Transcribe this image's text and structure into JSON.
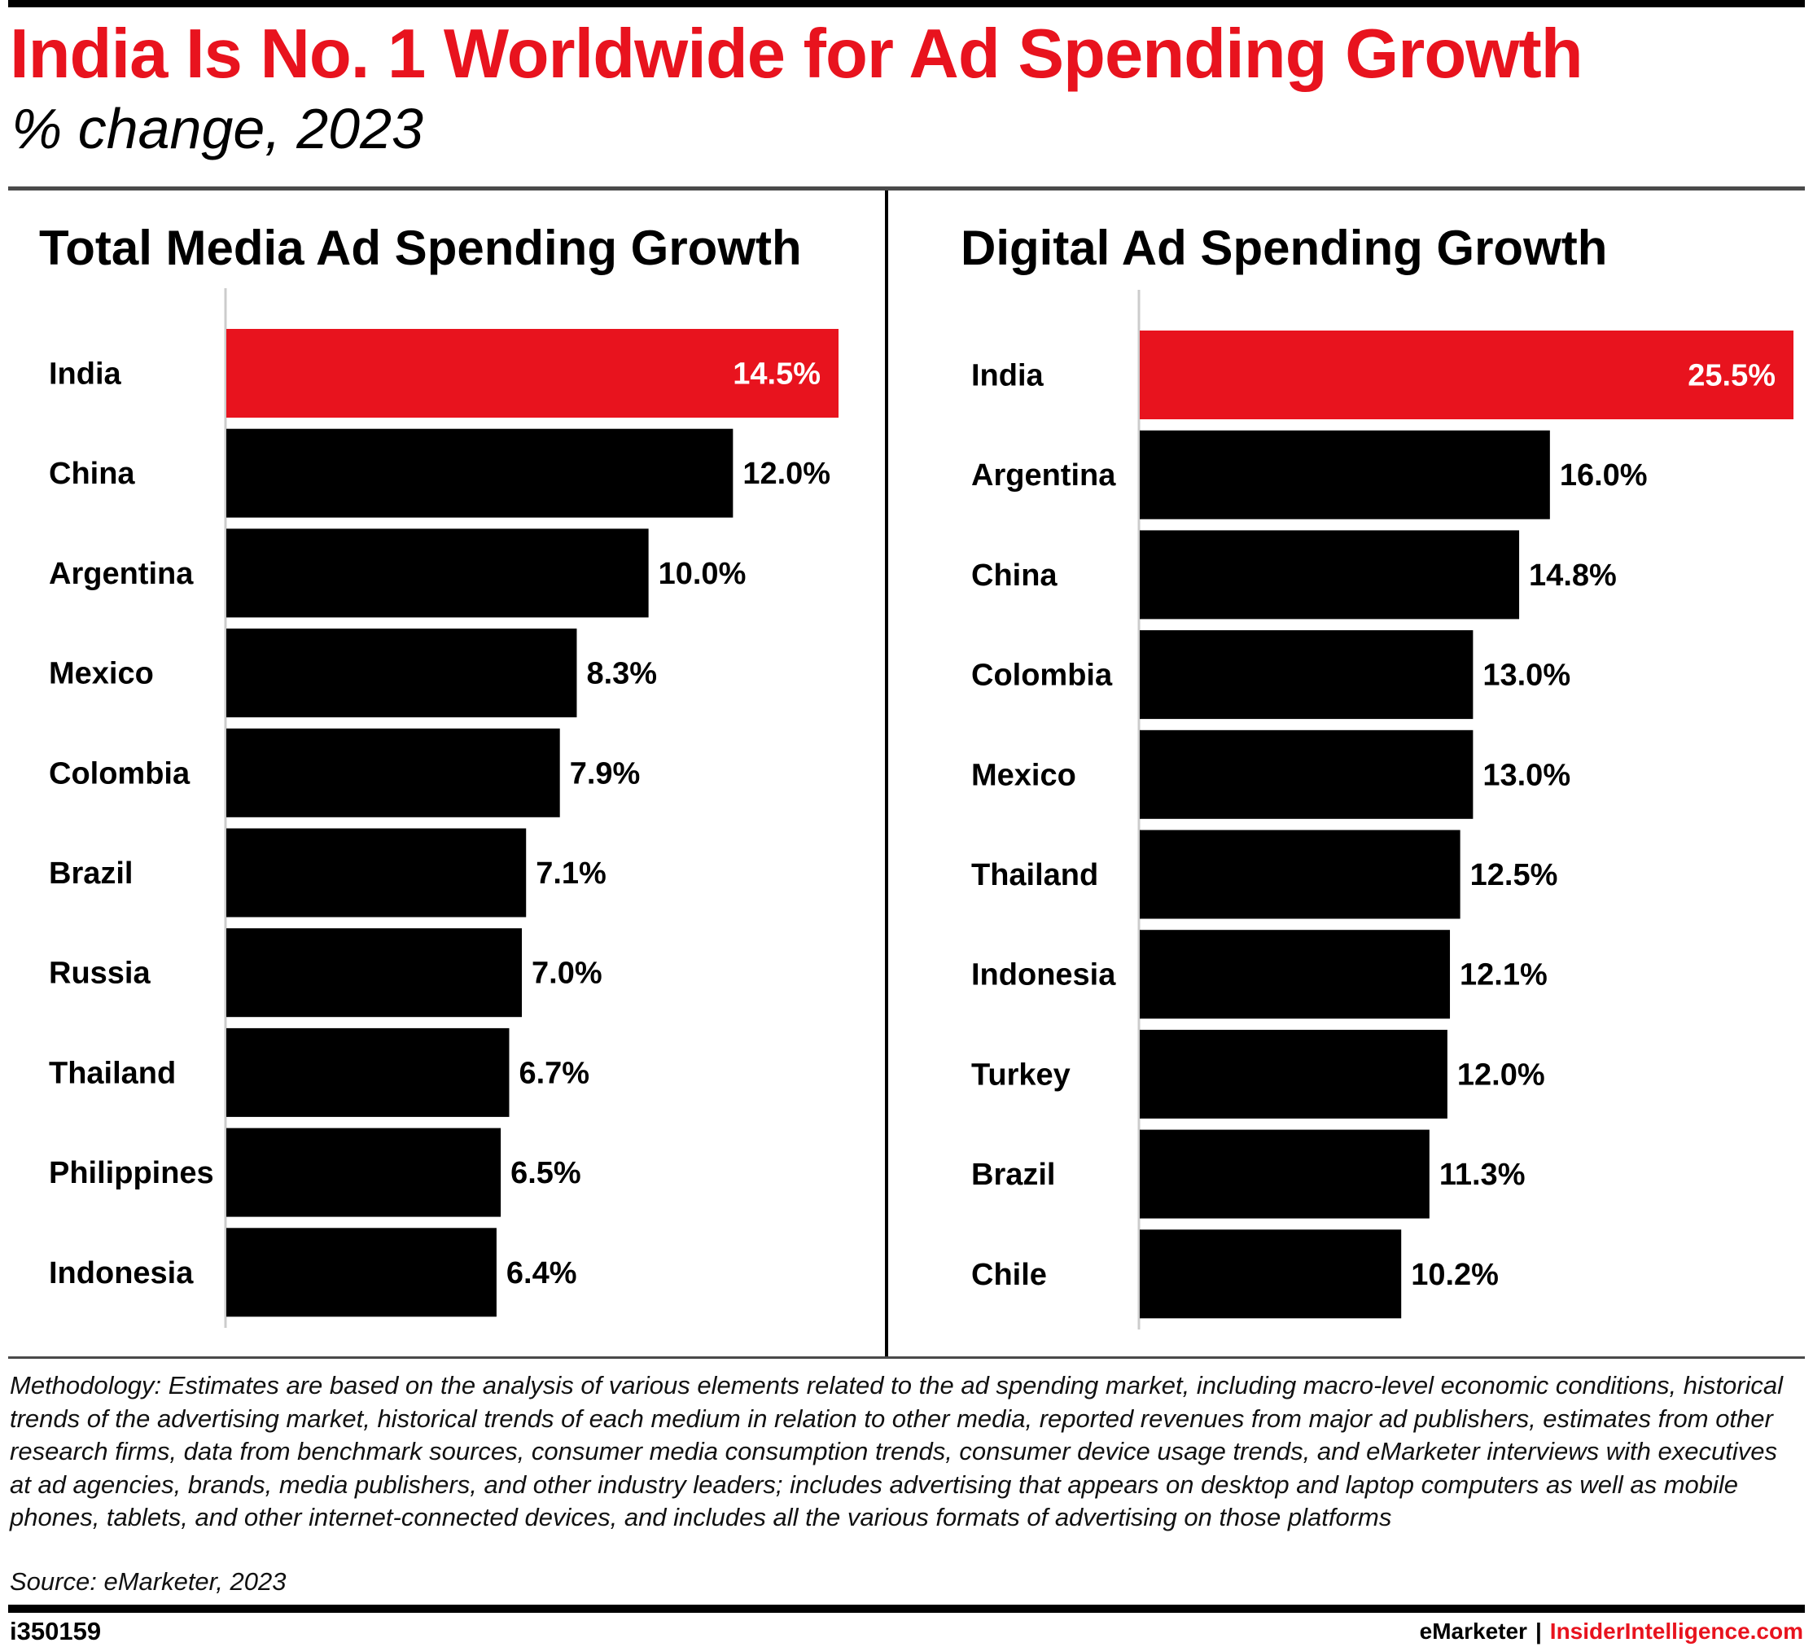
{
  "header": {
    "title": "India Is No. 1 Worldwide for Ad Spending Growth",
    "subtitle": "% change, 2023"
  },
  "chart_data": [
    {
      "type": "bar",
      "orientation": "horizontal",
      "title": "Total Media Ad Spending Growth",
      "categories": [
        "India",
        "China",
        "Argentina",
        "Mexico",
        "Colombia",
        "Brazil",
        "Russia",
        "Thailand",
        "Philippines",
        "Indonesia"
      ],
      "values": [
        14.5,
        12.0,
        10.0,
        8.3,
        7.9,
        7.1,
        7.0,
        6.7,
        6.5,
        6.4
      ],
      "value_labels": [
        "14.5%",
        "12.0%",
        "10.0%",
        "8.3%",
        "7.9%",
        "7.1%",
        "7.0%",
        "6.7%",
        "6.5%",
        "6.4%"
      ],
      "highlight_index": 0,
      "colors": {
        "bar": "#000000",
        "highlight": "#e8131e",
        "axis": "#cccccc"
      },
      "xlim": [
        0,
        14.5
      ],
      "grid": false,
      "legend": "none"
    },
    {
      "type": "bar",
      "orientation": "horizontal",
      "title": "Digital Ad Spending Growth",
      "categories": [
        "India",
        "Argentina",
        "China",
        "Colombia",
        "Mexico",
        "Thailand",
        "Indonesia",
        "Turkey",
        "Brazil",
        "Chile"
      ],
      "values": [
        25.5,
        16.0,
        14.8,
        13.0,
        13.0,
        12.5,
        12.1,
        12.0,
        11.3,
        10.2
      ],
      "value_labels": [
        "25.5%",
        "16.0%",
        "14.8%",
        "13.0%",
        "13.0%",
        "12.5%",
        "12.1%",
        "12.0%",
        "11.3%",
        "10.2%"
      ],
      "highlight_index": 0,
      "colors": {
        "bar": "#000000",
        "highlight": "#e8131e",
        "axis": "#cccccc"
      },
      "xlim": [
        0,
        25.5
      ],
      "grid": false,
      "legend": "none"
    }
  ],
  "footer": {
    "methodology": "Methodology: Estimates are based on the analysis of various elements related to the ad spending market, including macro-level economic conditions, historical trends of the advertising market, historical trends of each medium in relation to other media, reported revenues from major ad publishers, estimates from other research firms, data from benchmark sources, consumer media consumption trends, consumer device usage trends, and eMarketer interviews with executives at ad agencies, brands, media publishers, and other industry leaders; includes advertising that appears on desktop and laptop computers as well as mobile phones, tablets, and other internet-connected devices, and includes all the various formats of advertising on those platforms",
    "source": "Source: eMarketer, 2023",
    "chart_id": "i350159",
    "brand_a": "eMarketer",
    "brand_separator": "|",
    "brand_b": "InsiderIntelligence.com"
  }
}
